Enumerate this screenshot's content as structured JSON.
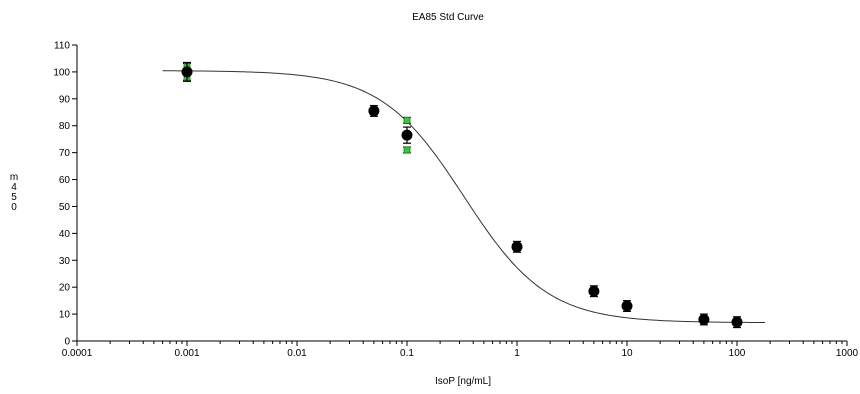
{
  "chart_data": {
    "type": "scatter",
    "title": "EA85 Std Curve",
    "xlabel": "IsoP [ng/mL]",
    "ylabel": "m450",
    "x_scale": "log",
    "xlim": [
      0.0001,
      1000
    ],
    "ylim": [
      0,
      110
    ],
    "x_ticks": [
      "0.0001",
      "0.001",
      "0.01",
      "0.1",
      "1",
      "10",
      "100",
      "1000"
    ],
    "y_ticks": [
      "0",
      "10",
      "20",
      "30",
      "40",
      "50",
      "60",
      "70",
      "80",
      "90",
      "100",
      "110"
    ],
    "grid": false,
    "series": [
      {
        "role": "mean",
        "marker": "circle",
        "color": "#000000",
        "points": [
          {
            "x": 0.001,
            "y": 100,
            "err": 3.5
          },
          {
            "x": 0.05,
            "y": 85.5,
            "err": 2
          },
          {
            "x": 0.1,
            "y": 76.5,
            "err": 3
          },
          {
            "x": 1,
            "y": 35,
            "err": 2
          },
          {
            "x": 5,
            "y": 18.5,
            "err": 2
          },
          {
            "x": 10,
            "y": 13,
            "err": 2
          },
          {
            "x": 50,
            "y": 8,
            "err": 2
          },
          {
            "x": 100,
            "y": 7,
            "err": 2
          }
        ]
      },
      {
        "role": "replicates",
        "marker": "square",
        "color": "#33cc33",
        "points": [
          {
            "x": 0.001,
            "y": 102
          },
          {
            "x": 0.001,
            "y": 98
          },
          {
            "x": 0.1,
            "y": 82
          },
          {
            "x": 0.1,
            "y": 71
          }
        ]
      }
    ],
    "fit_curve": {
      "model": "4PL",
      "top": 100.5,
      "bottom": 6.8,
      "ec50": 0.33,
      "hill": 1.15,
      "x_range": [
        0.0006,
        180
      ],
      "color": "#333333"
    }
  }
}
